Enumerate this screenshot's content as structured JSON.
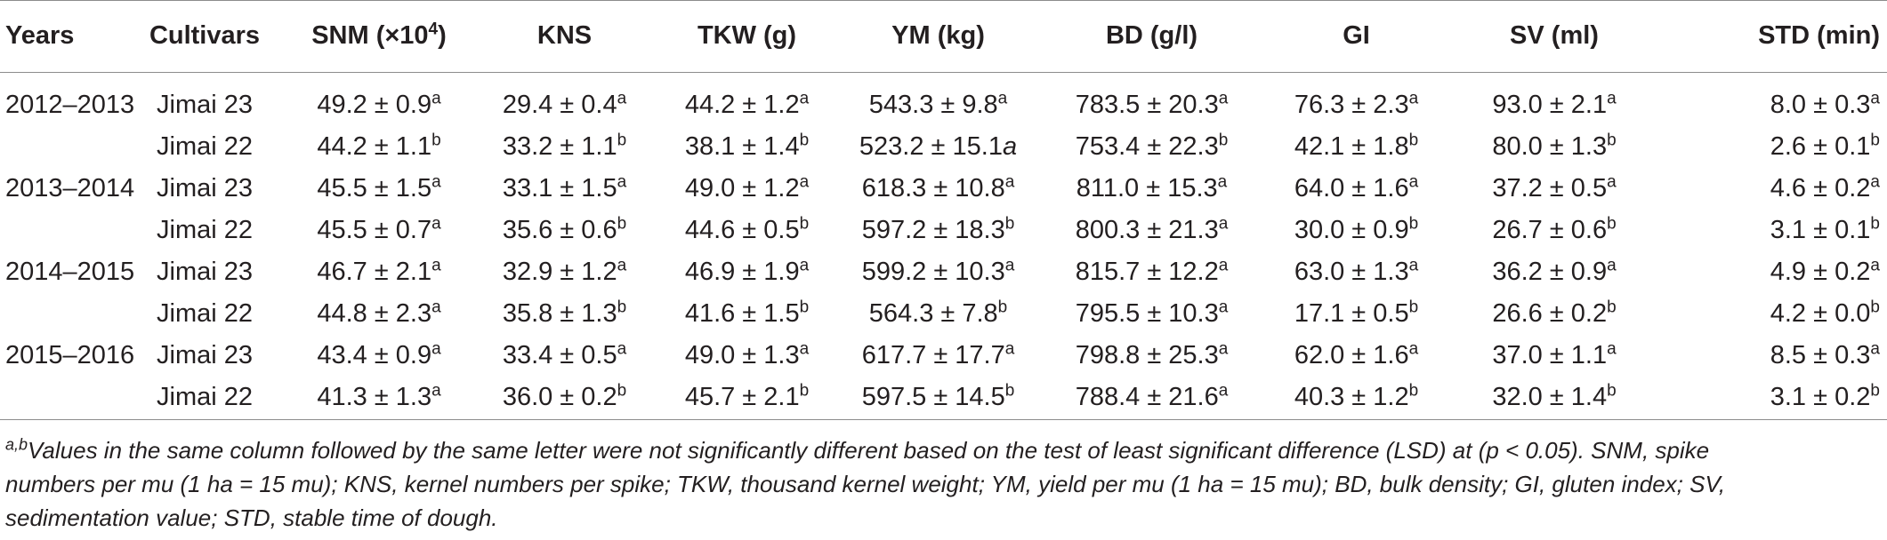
{
  "table": {
    "headers": {
      "years": "Years",
      "cultivars": "Cultivars",
      "snm": "SNM (×10",
      "snm_sup": "4",
      "snm_close": ")",
      "kns": "KNS",
      "tkw": "TKW (g)",
      "ym": "YM (kg)",
      "bd": "BD (g/l)",
      "gi": "GI",
      "sv": "SV (ml)",
      "std": "STD (min)"
    },
    "rows": [
      {
        "year": "2012–2013",
        "cultivar": "Jimai 23",
        "snm": {
          "v": "49.2 ± 0.9",
          "s": "a"
        },
        "kns": {
          "v": "29.4 ± 0.4",
          "s": "a"
        },
        "tkw": {
          "v": "44.2 ± 1.2",
          "s": "a"
        },
        "ym": {
          "v": "543.3 ± 9.8",
          "s": "a"
        },
        "bd": {
          "v": "783.5 ± 20.3",
          "s": "a"
        },
        "gi": {
          "v": "76.3 ± 2.3",
          "s": "a"
        },
        "sv": {
          "v": "93.0 ± 2.1",
          "s": "a"
        },
        "std": {
          "v": "8.0 ± 0.3",
          "s": "a"
        }
      },
      {
        "year": "",
        "cultivar": "Jimai 22",
        "snm": {
          "v": "44.2 ± 1.1",
          "s": "b"
        },
        "kns": {
          "v": "33.2 ± 1.1",
          "s": "b"
        },
        "tkw": {
          "v": "38.1 ± 1.4",
          "s": "b"
        },
        "ym": {
          "v": "523.2 ± 15.1",
          "s": "",
          "inline": "a"
        },
        "bd": {
          "v": "753.4 ± 22.3",
          "s": "b"
        },
        "gi": {
          "v": "42.1 ± 1.8",
          "s": "b"
        },
        "sv": {
          "v": "80.0 ± 1.3",
          "s": "b"
        },
        "std": {
          "v": "2.6 ± 0.1",
          "s": "b"
        }
      },
      {
        "year": "2013–2014",
        "cultivar": "Jimai 23",
        "snm": {
          "v": "45.5 ± 1.5",
          "s": "a"
        },
        "kns": {
          "v": "33.1 ± 1.5",
          "s": "a"
        },
        "tkw": {
          "v": "49.0 ± 1.2",
          "s": "a"
        },
        "ym": {
          "v": "618.3 ± 10.8",
          "s": "a"
        },
        "bd": {
          "v": "811.0 ± 15.3",
          "s": "a"
        },
        "gi": {
          "v": "64.0 ± 1.6",
          "s": "a"
        },
        "sv": {
          "v": "37.2 ± 0.5",
          "s": "a"
        },
        "std": {
          "v": "4.6 ± 0.2",
          "s": "a"
        }
      },
      {
        "year": "",
        "cultivar": "Jimai 22",
        "snm": {
          "v": "45.5 ± 0.7",
          "s": "a"
        },
        "kns": {
          "v": "35.6 ± 0.6",
          "s": "b"
        },
        "tkw": {
          "v": "44.6 ± 0.5",
          "s": "b"
        },
        "ym": {
          "v": "597.2 ± 18.3",
          "s": "b"
        },
        "bd": {
          "v": "800.3 ± 21.3",
          "s": "a"
        },
        "gi": {
          "v": "30.0 ± 0.9",
          "s": "b"
        },
        "sv": {
          "v": "26.7 ± 0.6",
          "s": "b"
        },
        "std": {
          "v": "3.1 ± 0.1",
          "s": "b"
        }
      },
      {
        "year": "2014–2015",
        "cultivar": "Jimai 23",
        "snm": {
          "v": "46.7 ± 2.1",
          "s": "a"
        },
        "kns": {
          "v": "32.9 ± 1.2",
          "s": "a"
        },
        "tkw": {
          "v": "46.9 ± 1.9",
          "s": "a"
        },
        "ym": {
          "v": "599.2 ± 10.3",
          "s": "a"
        },
        "bd": {
          "v": "815.7 ± 12.2",
          "s": "a"
        },
        "gi": {
          "v": "63.0 ± 1.3",
          "s": "a"
        },
        "sv": {
          "v": "36.2 ± 0.9",
          "s": "a"
        },
        "std": {
          "v": "4.9 ± 0.2",
          "s": "a"
        }
      },
      {
        "year": "",
        "cultivar": "Jimai 22",
        "snm": {
          "v": "44.8 ± 2.3",
          "s": "a"
        },
        "kns": {
          "v": "35.8 ± 1.3",
          "s": "b"
        },
        "tkw": {
          "v": "41.6 ± 1.5",
          "s": "b"
        },
        "ym": {
          "v": "564.3 ± 7.8",
          "s": "b"
        },
        "bd": {
          "v": "795.5 ± 10.3",
          "s": "a"
        },
        "gi": {
          "v": "17.1 ± 0.5",
          "s": "b"
        },
        "sv": {
          "v": "26.6 ± 0.2",
          "s": "b"
        },
        "std": {
          "v": "4.2 ± 0.0",
          "s": "b"
        }
      },
      {
        "year": "2015–2016",
        "cultivar": "Jimai 23",
        "snm": {
          "v": "43.4 ± 0.9",
          "s": "a"
        },
        "kns": {
          "v": "33.4 ± 0.5",
          "s": "a"
        },
        "tkw": {
          "v": "49.0 ± 1.3",
          "s": "a"
        },
        "ym": {
          "v": "617.7 ± 17.7",
          "s": "a"
        },
        "bd": {
          "v": "798.8 ± 25.3",
          "s": "a"
        },
        "gi": {
          "v": "62.0 ± 1.6",
          "s": "a"
        },
        "sv": {
          "v": "37.0 ± 1.1",
          "s": "a"
        },
        "std": {
          "v": "8.5 ± 0.3",
          "s": "a"
        }
      },
      {
        "year": "",
        "cultivar": "Jimai 22",
        "snm": {
          "v": "41.3 ± 1.3",
          "s": "a"
        },
        "kns": {
          "v": "36.0 ± 0.2",
          "s": "b"
        },
        "tkw": {
          "v": "45.7 ± 2.1",
          "s": "b"
        },
        "ym": {
          "v": "597.5 ± 14.5",
          "s": "b"
        },
        "bd": {
          "v": "788.4 ± 21.6",
          "s": "a"
        },
        "gi": {
          "v": "40.3 ± 1.2",
          "s": "b"
        },
        "sv": {
          "v": "32.0 ± 1.4",
          "s": "b"
        },
        "std": {
          "v": "3.1 ± 0.2",
          "s": "b"
        }
      }
    ]
  },
  "footnote": {
    "sup": "a,b",
    "line1": "Values in the same column followed by the same letter were not significantly different based on the test of least significant difference (LSD) at (p < 0.05). SNM, spike",
    "line2": "numbers per mu (1 ha = 15 mu); KNS, kernel numbers per spike; TKW, thousand kernel weight; YM, yield per mu (1 ha = 15 mu); BD, bulk density; GI, gluten index; SV,",
    "line3": "sedimentation value; STD, stable time of dough."
  }
}
